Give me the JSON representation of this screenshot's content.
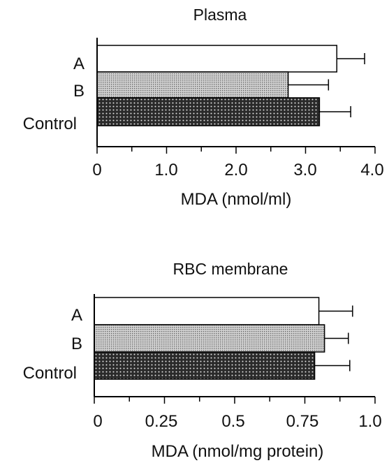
{
  "chart_data": [
    {
      "type": "bar",
      "orientation": "horizontal",
      "title": "Plasma",
      "xlabel": "MDA (nmol/ml)",
      "ylabel": "",
      "categories": [
        "A",
        "B",
        "Control"
      ],
      "values": [
        3.45,
        2.75,
        3.2
      ],
      "errors": [
        0.4,
        0.58,
        0.45
      ],
      "xlim": [
        0,
        4.0
      ],
      "ticks": [
        0,
        0.5,
        1.0,
        1.5,
        2.0,
        2.5,
        3.0,
        3.5,
        4.0
      ],
      "tick_labels": [
        "0",
        "",
        "1.0",
        "",
        "2.0",
        "",
        "3.0",
        "",
        "4.0"
      ],
      "fills": [
        "white",
        "light-dotted",
        "dark-dotted"
      ],
      "grid": false,
      "legend": "none"
    },
    {
      "type": "bar",
      "orientation": "horizontal",
      "title": "RBC membrane",
      "xlabel": "MDA (nmol/mg protein)",
      "ylabel": "",
      "categories": [
        "A",
        "B",
        "Control"
      ],
      "values": [
        0.8,
        0.82,
        0.785
      ],
      "errors": [
        0.12,
        0.085,
        0.125
      ],
      "xlim": [
        0,
        1.0
      ],
      "ticks": [
        0,
        0.125,
        0.25,
        0.375,
        0.5,
        0.625,
        0.75,
        0.875,
        1.0
      ],
      "tick_labels": [
        "0",
        "",
        "0.25",
        "",
        "0.5",
        "",
        "0.75",
        "",
        "1.0"
      ],
      "fills": [
        "white",
        "light-dotted",
        "dark-dotted"
      ],
      "grid": false,
      "legend": "none"
    }
  ]
}
